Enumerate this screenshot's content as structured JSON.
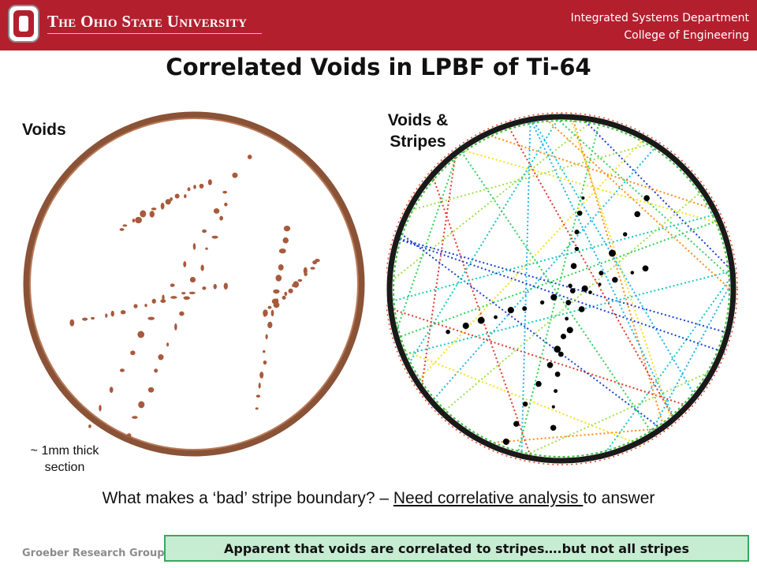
{
  "header": {
    "logo_letter": "O",
    "university": "The Ohio State University",
    "dept_line1": "Integrated Systems Department",
    "dept_line2": "College of Engineering"
  },
  "slide": {
    "title": "Correlated Voids in LPBF of Ti-64",
    "left_label": "Voids",
    "right_label_1": "Voids &",
    "right_label_2": "Stripes",
    "section_note_1": "~ 1mm thick",
    "section_note_2": "section",
    "question_pre": "What makes a ‘bad’ stripe boundary? – ",
    "question_link": "Need correlative analysis ",
    "question_post": "to answer",
    "callout": "Apparent that voids are correlated to stripes….but not all stripes"
  },
  "footer": {
    "group": "Groeber Research Group"
  },
  "colors": {
    "brand_red": "#b41f2e",
    "void_brown": "#a85a3c",
    "ring_brown": "#8a5236",
    "callout_fill": "#c6ecd2",
    "callout_border": "#3aa75e"
  }
}
